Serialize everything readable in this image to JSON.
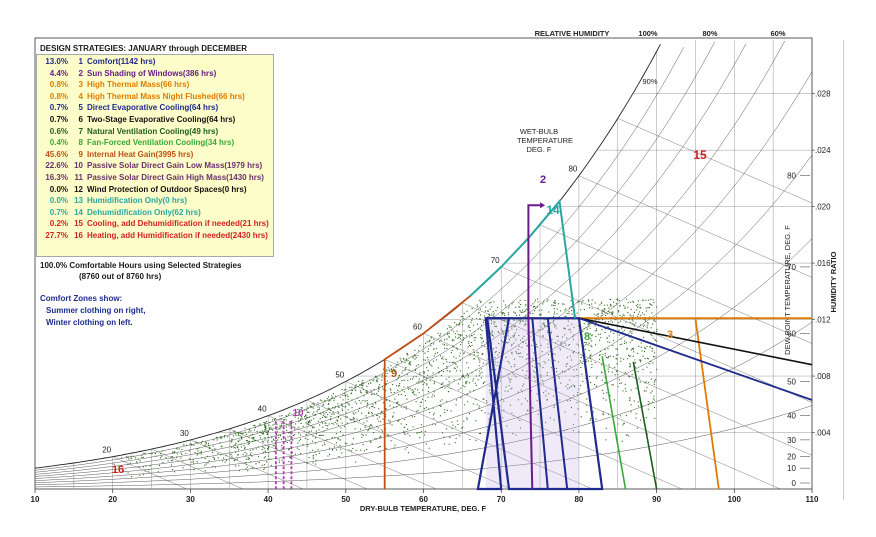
{
  "header": {
    "design_strategies": "DESIGN STRATEGIES:  JANUARY through DECEMBER",
    "relative_humidity": "RELATIVE HUMIDITY"
  },
  "strategies": [
    {
      "pct": "13.0%",
      "num": "1",
      "label": "Comfort(1142 hrs)",
      "color": "#1f2b8c"
    },
    {
      "pct": "4.4%",
      "num": "2",
      "label": "Sun Shading of Windows(386 hrs)",
      "color": "#6a1b8a"
    },
    {
      "pct": "0.8%",
      "num": "3",
      "label": "High Thermal Mass(66 hrs)",
      "color": "#e07b00"
    },
    {
      "pct": "0.8%",
      "num": "4",
      "label": "High Thermal Mass Night Flushed(66 hrs)",
      "color": "#e07b00"
    },
    {
      "pct": "0.7%",
      "num": "5",
      "label": "Direct Evaporative Cooling(64 hrs)",
      "color": "#1f2b8c"
    },
    {
      "pct": "0.7%",
      "num": "6",
      "label": "Two-Stage Evaporative Cooling(64 hrs)",
      "color": "#111111"
    },
    {
      "pct": "0.6%",
      "num": "7",
      "label": "Natural Ventilation Cooling(49 hrs)",
      "color": "#1e5e1e"
    },
    {
      "pct": "0.4%",
      "num": "8",
      "label": "Fan-Forced Ventilation Cooling(34 hrs)",
      "color": "#39a836"
    },
    {
      "pct": "45.6%",
      "num": "9",
      "label": "Internal Heat Gain(3995 hrs)",
      "color": "#c0501a"
    },
    {
      "pct": "22.6%",
      "num": "10",
      "label": "Passive Solar Direct Gain Low Mass(1979 hrs)",
      "color": "#6b2f6b"
    },
    {
      "pct": "16.3%",
      "num": "11",
      "label": "Passive Solar Direct Gain High Mass(1430 hrs)",
      "color": "#6b2f6b"
    },
    {
      "pct": "0.0%",
      "num": "12",
      "label": "Wind Protection of Outdoor Spaces(0 hrs)",
      "color": "#111111"
    },
    {
      "pct": "0.0%",
      "num": "13",
      "label": "Humidification Only(0 hrs)",
      "color": "#2aa6a0"
    },
    {
      "pct": "0.7%",
      "num": "14",
      "label": "Dehumidification Only(62 hrs)",
      "color": "#2aa6a0"
    },
    {
      "pct": "0.2%",
      "num": "15",
      "label": "Cooling, add Dehumidification if needed(21 hrs)",
      "color": "#d21f1f"
    },
    {
      "pct": "27.7%",
      "num": "16",
      "label": "Heating, add Humidification if needed(2430 hrs)",
      "color": "#d21f1f"
    }
  ],
  "summary": {
    "line1": "100.0%  Comfortable Hours using Selected Strategies",
    "line2": "(8760 out of 8760 hrs)"
  },
  "comfort_zones": {
    "title": "Comfort Zones show:",
    "line1": "Summer clothing on right,",
    "line2": "Winter clothing on left."
  },
  "chart_data": {
    "type": "psychrometric",
    "xlabel": "DRY-BULB TEMPERATURE, DEG. F",
    "ylabel_right": "HUMIDITY RATIO",
    "ylabel_dewpoint": "DEW POINT TEMPERATURE, DEG. F",
    "wetbulb_label": [
      "WET-BULB",
      "TEMPERATURE",
      "DEG. F"
    ],
    "x_ticks": [
      "10",
      "20",
      "30",
      "40",
      "50",
      "60",
      "70",
      "80",
      "90",
      "100",
      "110"
    ],
    "xlim": [
      10,
      110
    ],
    "humidity_ratio_ticks": [
      ".028",
      ".024",
      ".020",
      ".016",
      ".012",
      ".008",
      ".004"
    ],
    "dewpoint_ticks": [
      "80",
      "70",
      "60",
      "50",
      "40",
      "30",
      "20",
      "10",
      "0"
    ],
    "rh_labels": [
      "100%",
      "80%",
      "60%"
    ],
    "rh_mid_label": "90%",
    "wetbulb_ticks": [
      "20",
      "30",
      "40",
      "50",
      "60",
      "70",
      "80"
    ],
    "zone_labels": {
      "z2": "2",
      "z14": "14",
      "z15": "15",
      "z16": "16",
      "z9": "9",
      "z8": "8",
      "z3": "3",
      "z10": "10"
    },
    "hours_scatter_count": 8760
  }
}
